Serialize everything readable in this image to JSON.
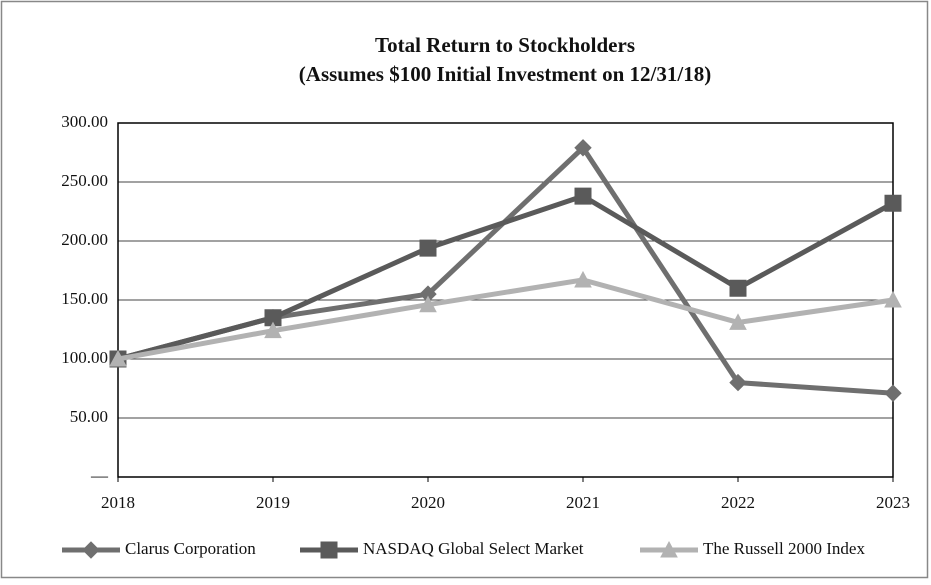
{
  "chart_data": {
    "type": "line",
    "title": "Total Return to Stockholders",
    "subtitle": "(Assumes $100 Initial Investment on 12/31/18)",
    "x": [
      2018,
      2019,
      2020,
      2021,
      2022,
      2023
    ],
    "xlim": [
      2018,
      2023
    ],
    "xticks": [
      2018,
      2019,
      2020,
      2021,
      2022,
      2023
    ],
    "ylim": [
      0,
      300
    ],
    "yticks": [
      {
        "value": 0,
        "label": "—"
      },
      {
        "value": 50,
        "label": "50.00"
      },
      {
        "value": 100,
        "label": "100.00"
      },
      {
        "value": 150,
        "label": "150.00"
      },
      {
        "value": 200,
        "label": "200.00"
      },
      {
        "value": 250,
        "label": "250.00"
      },
      {
        "value": 300,
        "label": "300.00"
      }
    ],
    "grid": true,
    "legend": "bottom",
    "series": [
      {
        "name": "Clarus Corporation",
        "color": "#6f6f6f",
        "marker": "diamond",
        "values": [
          100,
          135,
          155,
          279,
          80,
          71
        ]
      },
      {
        "name": "NASDAQ Global Select Market",
        "color": "#5a5a5a",
        "marker": "square",
        "values": [
          100,
          135,
          194,
          238,
          160,
          232
        ]
      },
      {
        "name": "The Russell 2000 Index",
        "color": "#b2b2b2",
        "marker": "triangle",
        "values": [
          100,
          124,
          146,
          167,
          131,
          150
        ]
      }
    ]
  }
}
